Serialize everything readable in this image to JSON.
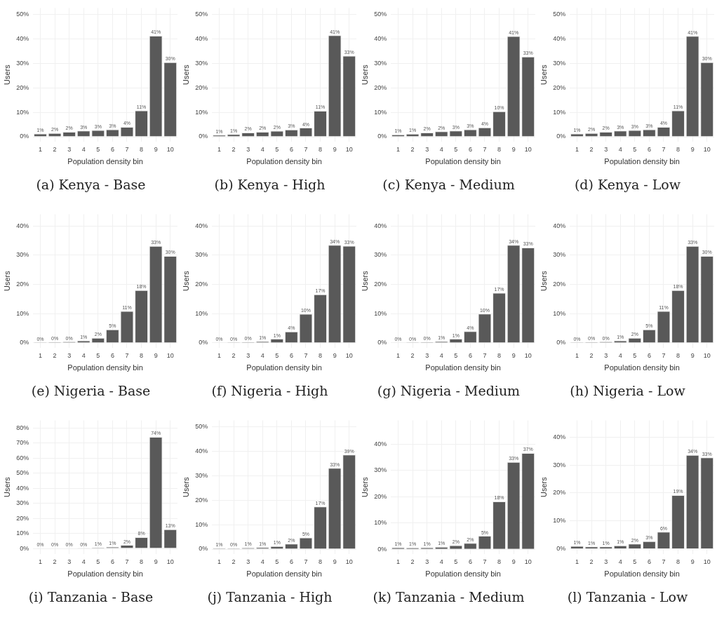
{
  "chart_data": [
    {
      "type": "bar",
      "title": "(a)  Kenya - Base",
      "xlabel": "Population density bin",
      "ylabel": "Users",
      "categories": [
        "1",
        "2",
        "3",
        "4",
        "5",
        "6",
        "7",
        "8",
        "9",
        "10"
      ],
      "color": "#595959",
      "values": [
        1.3,
        1.5,
        2.0,
        2.5,
        2.7,
        3.0,
        4.0,
        10.7,
        41.2,
        30.4
      ],
      "value_labels": [
        "1%",
        "2%",
        "2%",
        "3%",
        "3%",
        "3%",
        "4%",
        "11%",
        "41%",
        "30%"
      ],
      "ylim": [
        -2,
        52.5
      ],
      "yticks": [
        {
          "value": 0,
          "label": "0%"
        },
        {
          "value": 10,
          "label": "10%"
        },
        {
          "value": 20,
          "label": "20%"
        },
        {
          "value": 30,
          "label": "30%"
        },
        {
          "value": 40,
          "label": "40%"
        },
        {
          "value": 50,
          "label": "50%"
        }
      ],
      "grid": true
    },
    {
      "type": "bar",
      "title": "(b)  Kenya - High",
      "xlabel": "Population density bin",
      "ylabel": "Users",
      "categories": [
        "1",
        "2",
        "3",
        "4",
        "5",
        "6",
        "7",
        "8",
        "9",
        "10"
      ],
      "color": "#595959",
      "values": [
        0.8,
        1.1,
        1.7,
        2.0,
        2.4,
        2.9,
        3.7,
        10.6,
        41.4,
        33.0
      ],
      "value_labels": [
        "1%",
        "1%",
        "2%",
        "2%",
        "2%",
        "3%",
        "4%",
        "11%",
        "41%",
        "33%"
      ],
      "ylim": [
        -2,
        52.5
      ],
      "yticks": [
        {
          "value": 0,
          "label": "0%"
        },
        {
          "value": 10,
          "label": "10%"
        },
        {
          "value": 20,
          "label": "20%"
        },
        {
          "value": 30,
          "label": "30%"
        },
        {
          "value": 40,
          "label": "40%"
        },
        {
          "value": 50,
          "label": "50%"
        }
      ],
      "grid": true
    },
    {
      "type": "bar",
      "title": "(c)  Kenya - Medium",
      "xlabel": "Population density bin",
      "ylabel": "Users",
      "categories": [
        "1",
        "2",
        "3",
        "4",
        "5",
        "6",
        "7",
        "8",
        "9",
        "10"
      ],
      "color": "#595959",
      "values": [
        0.9,
        1.2,
        1.7,
        2.2,
        2.5,
        3.0,
        3.8,
        10.4,
        41.0,
        32.7
      ],
      "value_labels": [
        "1%",
        "1%",
        "2%",
        "2%",
        "3%",
        "3%",
        "4%",
        "10%",
        "41%",
        "33%"
      ],
      "ylim": [
        -2,
        52.5
      ],
      "yticks": [
        {
          "value": 0,
          "label": "0%"
        },
        {
          "value": 10,
          "label": "10%"
        },
        {
          "value": 20,
          "label": "20%"
        },
        {
          "value": 30,
          "label": "30%"
        },
        {
          "value": 40,
          "label": "40%"
        },
        {
          "value": 50,
          "label": "50%"
        }
      ],
      "grid": true
    },
    {
      "type": "bar",
      "title": "(d)  Kenya - Low",
      "xlabel": "Population density bin",
      "ylabel": "Users",
      "categories": [
        "1",
        "2",
        "3",
        "4",
        "5",
        "6",
        "7",
        "8",
        "9",
        "10"
      ],
      "color": "#595959",
      "values": [
        1.3,
        1.5,
        2.0,
        2.5,
        2.7,
        3.0,
        4.0,
        10.7,
        41.1,
        30.4
      ],
      "value_labels": [
        "1%",
        "2%",
        "2%",
        "3%",
        "3%",
        "3%",
        "4%",
        "11%",
        "41%",
        "30%"
      ],
      "ylim": [
        -2,
        52.5
      ],
      "yticks": [
        {
          "value": 0,
          "label": "0%"
        },
        {
          "value": 10,
          "label": "10%"
        },
        {
          "value": 20,
          "label": "20%"
        },
        {
          "value": 30,
          "label": "30%"
        },
        {
          "value": 40,
          "label": "40%"
        },
        {
          "value": 50,
          "label": "50%"
        }
      ],
      "grid": true
    },
    {
      "type": "bar",
      "title": "(e)  Nigeria - Base",
      "xlabel": "Population density bin",
      "ylabel": "Users",
      "categories": [
        "1",
        "2",
        "3",
        "4",
        "5",
        "6",
        "7",
        "8",
        "9",
        "10"
      ],
      "color": "#595959",
      "values": [
        0.2,
        0.3,
        0.4,
        0.8,
        1.7,
        4.6,
        10.9,
        18.0,
        33.1,
        29.7
      ],
      "value_labels": [
        "0%",
        "0%",
        "0%",
        "1%",
        "2%",
        "5%",
        "11%",
        "18%",
        "33%",
        "30%"
      ],
      "ylim": [
        -1.7,
        44
      ],
      "yticks": [
        {
          "value": 0,
          "label": "0%"
        },
        {
          "value": 10,
          "label": "10%"
        },
        {
          "value": 20,
          "label": "20%"
        },
        {
          "value": 30,
          "label": "30%"
        },
        {
          "value": 40,
          "label": "40%"
        }
      ],
      "grid": true
    },
    {
      "type": "bar",
      "title": "(f)  Nigeria - High",
      "xlabel": "Population density bin",
      "ylabel": "Users",
      "categories": [
        "1",
        "2",
        "3",
        "4",
        "5",
        "6",
        "7",
        "8",
        "9",
        "10"
      ],
      "color": "#595959",
      "values": [
        0.1,
        0.2,
        0.3,
        0.6,
        1.4,
        3.9,
        9.9,
        16.6,
        33.5,
        33.2
      ],
      "value_labels": [
        "0%",
        "0%",
        "0%",
        "1%",
        "1%",
        "4%",
        "10%",
        "17%",
        "34%",
        "33%"
      ],
      "ylim": [
        -1.7,
        44
      ],
      "yticks": [
        {
          "value": 0,
          "label": "0%"
        },
        {
          "value": 10,
          "label": "10%"
        },
        {
          "value": 20,
          "label": "20%"
        },
        {
          "value": 30,
          "label": "30%"
        },
        {
          "value": 40,
          "label": "40%"
        }
      ],
      "grid": true
    },
    {
      "type": "bar",
      "title": "(g)  Nigeria - Medium",
      "xlabel": "Population density bin",
      "ylabel": "Users",
      "categories": [
        "1",
        "2",
        "3",
        "4",
        "5",
        "6",
        "7",
        "8",
        "9",
        "10"
      ],
      "color": "#595959",
      "values": [
        0.1,
        0.2,
        0.3,
        0.6,
        1.4,
        4.0,
        10.0,
        17.1,
        33.5,
        32.6
      ],
      "value_labels": [
        "0%",
        "0%",
        "0%",
        "1%",
        "1%",
        "4%",
        "10%",
        "17%",
        "34%",
        "33%"
      ],
      "ylim": [
        -1.7,
        44
      ],
      "yticks": [
        {
          "value": 0,
          "label": "0%"
        },
        {
          "value": 10,
          "label": "10%"
        },
        {
          "value": 20,
          "label": "20%"
        },
        {
          "value": 30,
          "label": "30%"
        },
        {
          "value": 40,
          "label": "40%"
        }
      ],
      "grid": true
    },
    {
      "type": "bar",
      "title": "(h)  Nigeria - Low",
      "xlabel": "Population density bin",
      "ylabel": "Users",
      "categories": [
        "1",
        "2",
        "3",
        "4",
        "5",
        "6",
        "7",
        "8",
        "9",
        "10"
      ],
      "color": "#595959",
      "values": [
        0.2,
        0.3,
        0.4,
        0.8,
        1.7,
        4.6,
        10.9,
        18.0,
        33.1,
        29.7
      ],
      "value_labels": [
        "0%",
        "0%",
        "0%",
        "1%",
        "2%",
        "5%",
        "11%",
        "18%",
        "33%",
        "30%"
      ],
      "ylim": [
        -1.7,
        44
      ],
      "yticks": [
        {
          "value": 0,
          "label": "0%"
        },
        {
          "value": 10,
          "label": "10%"
        },
        {
          "value": 20,
          "label": "20%"
        },
        {
          "value": 30,
          "label": "30%"
        },
        {
          "value": 40,
          "label": "40%"
        }
      ],
      "grid": true
    },
    {
      "type": "bar",
      "title": "(i)  Tanzania - Base",
      "xlabel": "Population density bin",
      "ylabel": "Users",
      "categories": [
        "1",
        "2",
        "3",
        "4",
        "5",
        "6",
        "7",
        "8",
        "9",
        "10"
      ],
      "color": "#595959",
      "values": [
        0.2,
        0.2,
        0.2,
        0.4,
        0.7,
        1.1,
        2.3,
        7.5,
        74.0,
        12.7
      ],
      "value_labels": [
        "0%",
        "0%",
        "0%",
        "0%",
        "1%",
        "1%",
        "2%",
        "8%",
        "74%",
        "13%"
      ],
      "ylim": [
        -3.7,
        85
      ],
      "yticks": [
        {
          "value": 0,
          "label": "0%"
        },
        {
          "value": 10,
          "label": "10%"
        },
        {
          "value": 20,
          "label": "20%"
        },
        {
          "value": 30,
          "label": "30%"
        },
        {
          "value": 40,
          "label": "40%"
        },
        {
          "value": 50,
          "label": "50%"
        },
        {
          "value": 60,
          "label": "60%"
        },
        {
          "value": 70,
          "label": "70%"
        },
        {
          "value": 80,
          "label": "80%"
        }
      ],
      "grid": true
    },
    {
      "type": "bar",
      "title": "(j)  Tanzania - High",
      "xlabel": "Population density bin",
      "ylabel": "Users",
      "categories": [
        "1",
        "2",
        "3",
        "4",
        "5",
        "6",
        "7",
        "8",
        "9",
        "10"
      ],
      "color": "#595959",
      "values": [
        0.5,
        0.4,
        0.6,
        0.8,
        1.2,
        2.2,
        4.7,
        17.4,
        33.1,
        38.5
      ],
      "value_labels": [
        "1%",
        "0%",
        "1%",
        "1%",
        "1%",
        "2%",
        "5%",
        "17%",
        "33%",
        "39%"
      ],
      "ylim": [
        -2,
        52.5
      ],
      "yticks": [
        {
          "value": 0,
          "label": "0%"
        },
        {
          "value": 10,
          "label": "10%"
        },
        {
          "value": 20,
          "label": "20%"
        },
        {
          "value": 30,
          "label": "30%"
        },
        {
          "value": 40,
          "label": "40%"
        },
        {
          "value": 50,
          "label": "50%"
        }
      ],
      "grid": true
    },
    {
      "type": "bar",
      "title": "(k)  Tanzania - Medium",
      "xlabel": "Population density bin",
      "ylabel": "Users",
      "categories": [
        "1",
        "2",
        "3",
        "4",
        "5",
        "6",
        "7",
        "8",
        "9",
        "10"
      ],
      "color": "#595959",
      "values": [
        0.7,
        0.6,
        0.7,
        0.9,
        1.5,
        2.4,
        5.1,
        18.2,
        33.2,
        36.6
      ],
      "value_labels": [
        "1%",
        "1%",
        "1%",
        "1%",
        "2%",
        "2%",
        "5%",
        "18%",
        "33%",
        "37%"
      ],
      "ylim": [
        -1.8,
        49
      ],
      "yticks": [
        {
          "value": 0,
          "label": "0%"
        },
        {
          "value": 10,
          "label": "10%"
        },
        {
          "value": 20,
          "label": "20%"
        },
        {
          "value": 30,
          "label": "30%"
        },
        {
          "value": 40,
          "label": "40%"
        }
      ],
      "grid": true
    },
    {
      "type": "bar",
      "title": "(l)  Tanzania - Low",
      "xlabel": "Population density bin",
      "ylabel": "Users",
      "categories": [
        "1",
        "2",
        "3",
        "4",
        "5",
        "6",
        "7",
        "8",
        "9",
        "10"
      ],
      "color": "#595959",
      "values": [
        1.0,
        0.8,
        0.8,
        1.2,
        1.8,
        2.7,
        6.1,
        19.2,
        33.6,
        32.7
      ],
      "value_labels": [
        "1%",
        "1%",
        "1%",
        "1%",
        "2%",
        "3%",
        "6%",
        "19%",
        "34%",
        "33%"
      ],
      "ylim": [
        -1.9,
        46
      ],
      "yticks": [
        {
          "value": 0,
          "label": "0%"
        },
        {
          "value": 10,
          "label": "10%"
        },
        {
          "value": 20,
          "label": "20%"
        },
        {
          "value": 30,
          "label": "30%"
        },
        {
          "value": 40,
          "label": "40%"
        }
      ],
      "grid": true
    }
  ]
}
